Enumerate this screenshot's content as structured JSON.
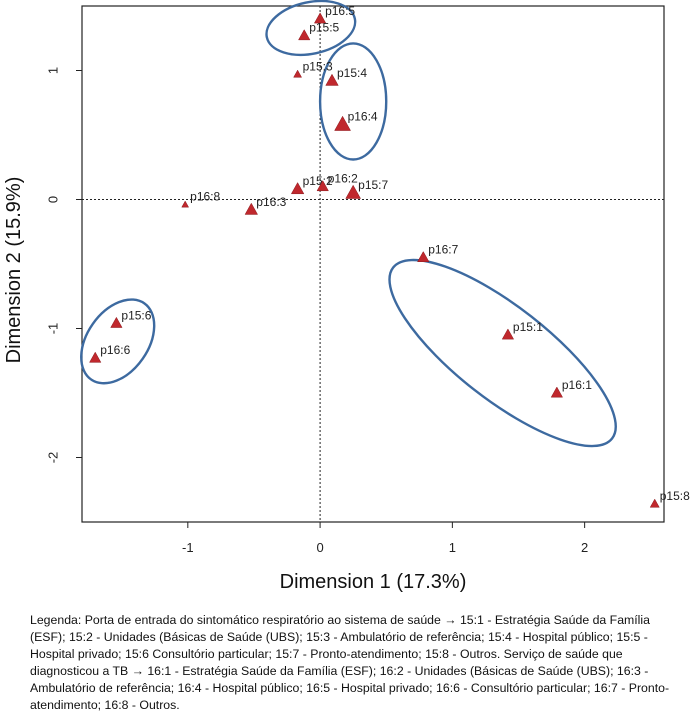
{
  "chart_data": {
    "type": "scatter",
    "xlabel": "Dimension 1 (17.3%)",
    "ylabel": "Dimension 2 (15.9%)",
    "xlim": [
      -1.8,
      2.6
    ],
    "ylim": [
      -2.5,
      1.5
    ],
    "x_ticks": [
      -1,
      0,
      1,
      2
    ],
    "y_ticks": [
      -2,
      -1,
      0,
      1
    ],
    "reference_lines": {
      "x": 0,
      "y": 0
    },
    "marker_color": "#c0282d",
    "ellipse_color": "#3d6aa0",
    "points": [
      {
        "label": "p16:5",
        "x": 0.0,
        "y": 1.4
      },
      {
        "label": "p15:5",
        "x": -0.12,
        "y": 1.27
      },
      {
        "label": "p15:3",
        "x": -0.17,
        "y": 0.97
      },
      {
        "label": "p15:4",
        "x": 0.09,
        "y": 0.92
      },
      {
        "label": "p16:4",
        "x": 0.17,
        "y": 0.58
      },
      {
        "label": "p15:2",
        "x": -0.17,
        "y": 0.08
      },
      {
        "label": "p16:2",
        "x": 0.02,
        "y": 0.1
      },
      {
        "label": "p15:7",
        "x": 0.25,
        "y": 0.05
      },
      {
        "label": "p16:8",
        "x": -1.02,
        "y": -0.04
      },
      {
        "label": "p16:3",
        "x": -0.52,
        "y": -0.08
      },
      {
        "label": "p16:7",
        "x": 0.78,
        "y": -0.45
      },
      {
        "label": "p15:6",
        "x": -1.54,
        "y": -0.96
      },
      {
        "label": "p16:6",
        "x": -1.7,
        "y": -1.23
      },
      {
        "label": "p15:1",
        "x": 1.42,
        "y": -1.05
      },
      {
        "label": "p16:1",
        "x": 1.79,
        "y": -1.5
      },
      {
        "label": "p15:8",
        "x": 2.53,
        "y": -2.36
      }
    ],
    "point_sizes": {
      "p16:5": 1,
      "p15:5": 1,
      "p15:3": 0.7,
      "p15:4": 1.1,
      "p16:4": 1.4,
      "p15:2": 1.1,
      "p16:2": 1,
      "p15:7": 1.3,
      "p16:8": 0.6,
      "p16:3": 1.1,
      "p16:7": 1,
      "p15:6": 1,
      "p16:6": 1,
      "p15:1": 1,
      "p16:1": 1,
      "p15:8": 0.8
    },
    "clusters": [
      {
        "name": "private-hospital",
        "members": [
          "p16:5",
          "p15:5"
        ],
        "cx": -0.07,
        "cy": 1.33,
        "rx": 0.34,
        "ry": 0.2,
        "angle": -12
      },
      {
        "name": "public-hospital",
        "members": [
          "p15:4",
          "p16:4"
        ],
        "cx": 0.25,
        "cy": 0.76,
        "rx": 0.25,
        "ry": 0.45,
        "angle": 0
      },
      {
        "name": "private-office",
        "members": [
          "p15:6",
          "p16:6"
        ],
        "cx": -1.53,
        "cy": -1.1,
        "rx": 0.23,
        "ry": 0.36,
        "angle": 35
      },
      {
        "name": "emergency-family-health",
        "members": [
          "p16:7",
          "p15:1",
          "p16:1"
        ],
        "cx": 1.38,
        "cy": -1.19,
        "rx": 1.05,
        "ry": 0.36,
        "angle": 38
      }
    ]
  },
  "legend_text": "Legenda: Porta de entrada do sintomático respiratório ao sistema de saúde → 15:1 - Estratégia Saúde da Família (ESF); 15:2 - Unidades (Básicas de Saúde (UBS); 15:3 - Ambulatório de referência; 15:4 - Hospital público; 15:5 - Hospital privado; 15:6 Consultório particular; 15:7 - Pronto-atendimento; 15:8 - Outros. Serviço de saúde que diagnosticou a TB → 16:1 - Estratégia Saúde da Família (ESF); 16:2 - Unidades (Básicas de Saúde (UBS); 16:3 - Ambulatório de referência; 16:4 - Hospital público; 16:5 - Hospital privado; 16:6 - Consultório particular; 16:7 - Pronto-atendimento; 16:8 - Outros."
}
